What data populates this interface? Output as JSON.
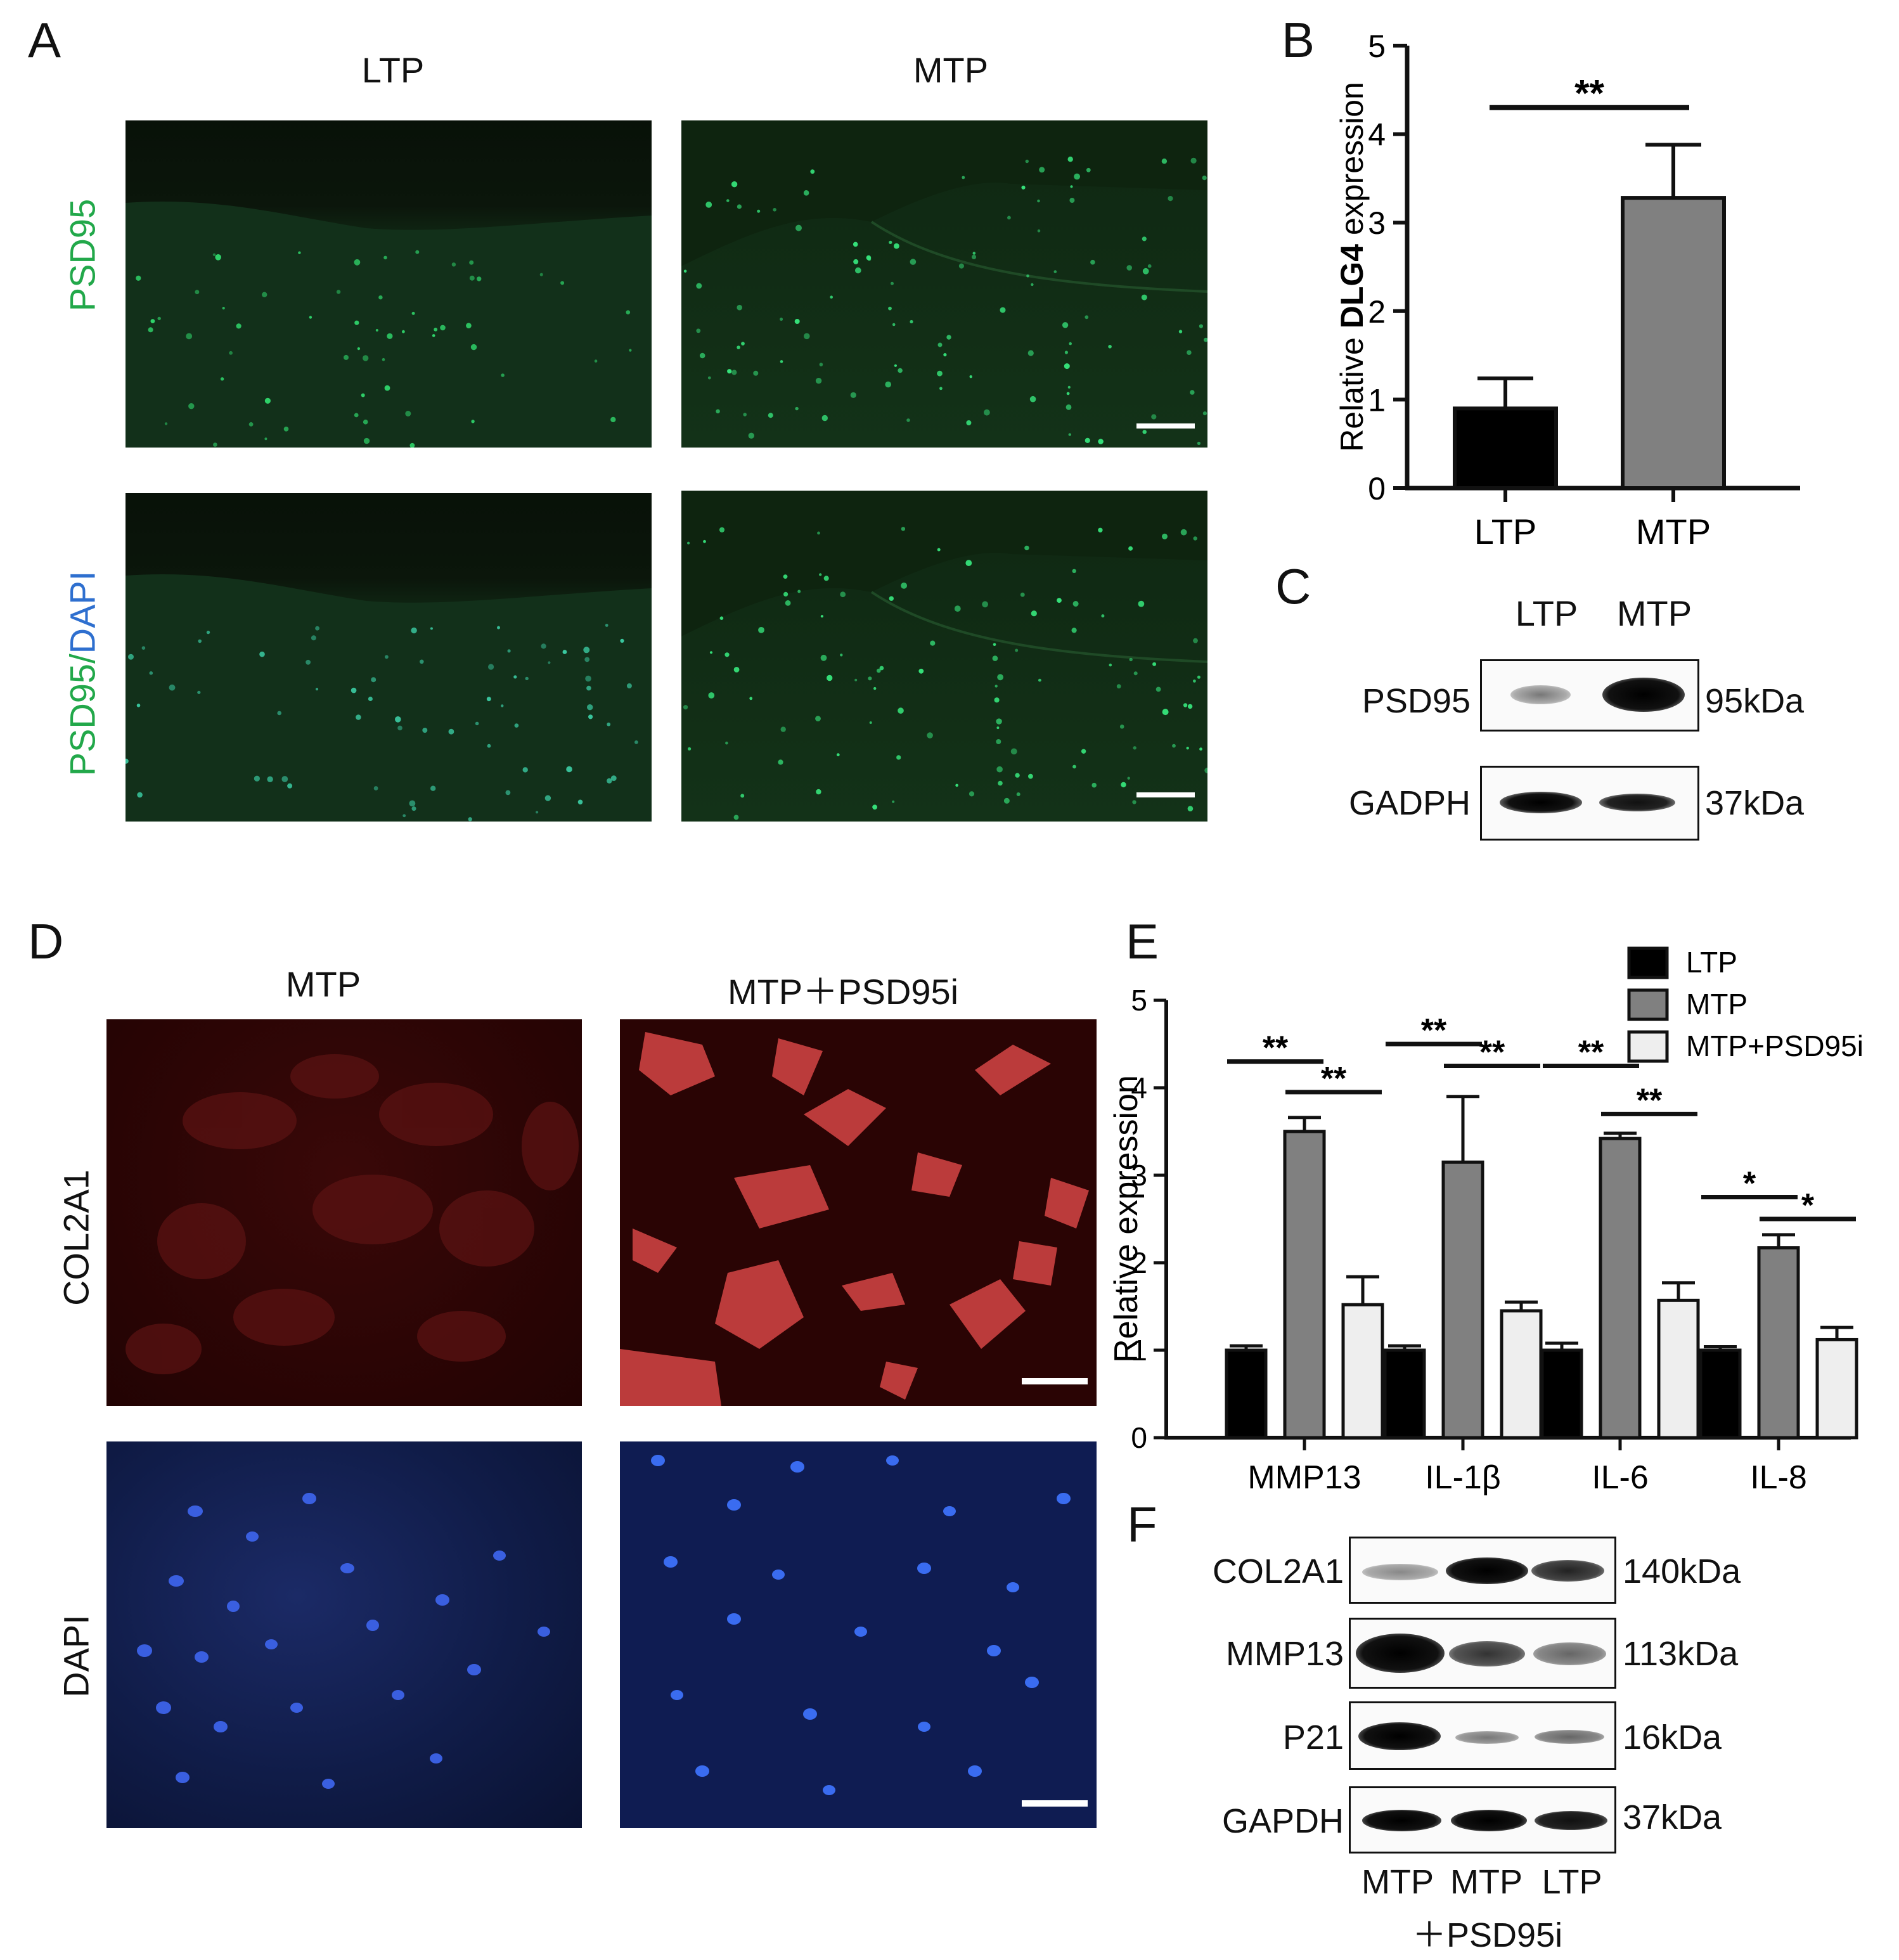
{
  "panels": {
    "A": {
      "label": "A",
      "col_titles": [
        "LTP",
        "MTP"
      ],
      "row_labels": [
        {
          "parts": [
            {
              "text": "PSD95",
              "color": "#22a84a"
            }
          ]
        },
        {
          "parts": [
            {
              "text": "PSD95",
              "color": "#22a84a"
            },
            {
              "text": "/",
              "color": "#22a84a"
            },
            {
              "text": "DAPI",
              "color": "#2e6fcf"
            }
          ]
        }
      ]
    },
    "B": {
      "label": "B"
    },
    "C": {
      "label": "C",
      "lanes": [
        "LTP",
        "MTP"
      ],
      "rows": [
        {
          "protein": "PSD95",
          "size": "95kDa"
        },
        {
          "protein": "GADPH",
          "size": "37kDa"
        }
      ]
    },
    "D": {
      "label": "D",
      "col_titles": [
        "MTP",
        "MTP＋PSD95i"
      ],
      "row_labels": [
        "COL2A1",
        "DAPI"
      ]
    },
    "E": {
      "label": "E"
    },
    "F": {
      "label": "F",
      "rows": [
        {
          "protein": "COL2A1",
          "size": "140kDa"
        },
        {
          "protein": "MMP13",
          "size": "113kDa"
        },
        {
          "protein": "P21",
          "size": "16kDa"
        },
        {
          "protein": "GAPDH",
          "size": "37kDa"
        }
      ],
      "lanes": [
        "MTP",
        "MTP",
        "LTP"
      ],
      "lane_sub": "＋PSD95i"
    }
  },
  "chart_data": [
    {
      "type": "bar",
      "panel": "B",
      "categories": [
        "LTP",
        "MTP"
      ],
      "values": [
        0.9,
        3.28
      ],
      "errors": [
        0.34,
        0.6
      ],
      "bar_colors": [
        "#000000",
        "#808080"
      ],
      "ylabel_parts": [
        "Relative ",
        "DLG4",
        " expression"
      ],
      "ylim": [
        0,
        5
      ],
      "yticks": [
        0,
        1,
        2,
        3,
        4,
        5
      ],
      "significance": [
        {
          "from": 0,
          "to": 1,
          "label": "**"
        }
      ]
    },
    {
      "type": "bar",
      "panel": "E",
      "categories": [
        "MMP13",
        "IL-1β",
        "IL-6",
        "IL-8"
      ],
      "series": [
        {
          "name": "LTP",
          "color": "#000000",
          "values": [
            1.0,
            1.0,
            1.0,
            1.0
          ],
          "errors": [
            0.05,
            0.05,
            0.08,
            0.04
          ]
        },
        {
          "name": "MTP",
          "color": "#808080",
          "values": [
            3.5,
            3.15,
            3.42,
            2.17
          ],
          "errors": [
            0.16,
            0.75,
            0.06,
            0.15
          ]
        },
        {
          "name": "MTP+PSD95i",
          "color": "#eeeeee",
          "values": [
            1.52,
            1.45,
            1.57,
            1.12
          ],
          "errors": [
            0.32,
            0.1,
            0.2,
            0.14
          ]
        }
      ],
      "ylabel": "Relative expression",
      "ylim": [
        0,
        5
      ],
      "yticks": [
        0,
        1,
        2,
        3,
        4,
        5
      ],
      "legend": "top-right",
      "significance": [
        {
          "category": 0,
          "from": 0,
          "to": 1,
          "label": "**"
        },
        {
          "category": 0,
          "from": 1,
          "to": 2,
          "label": "**"
        },
        {
          "category": 1,
          "from": 0,
          "to": 1,
          "label": "**"
        },
        {
          "category": 1,
          "from": 1,
          "to": 2,
          "label": "**"
        },
        {
          "category": 2,
          "from": 0,
          "to": 1,
          "label": "**"
        },
        {
          "category": 2,
          "from": 1,
          "to": 2,
          "label": "**"
        },
        {
          "category": 3,
          "from": 0,
          "to": 1,
          "label": "*"
        },
        {
          "category": 3,
          "from": 1,
          "to": 2,
          "label": "*"
        }
      ]
    }
  ]
}
